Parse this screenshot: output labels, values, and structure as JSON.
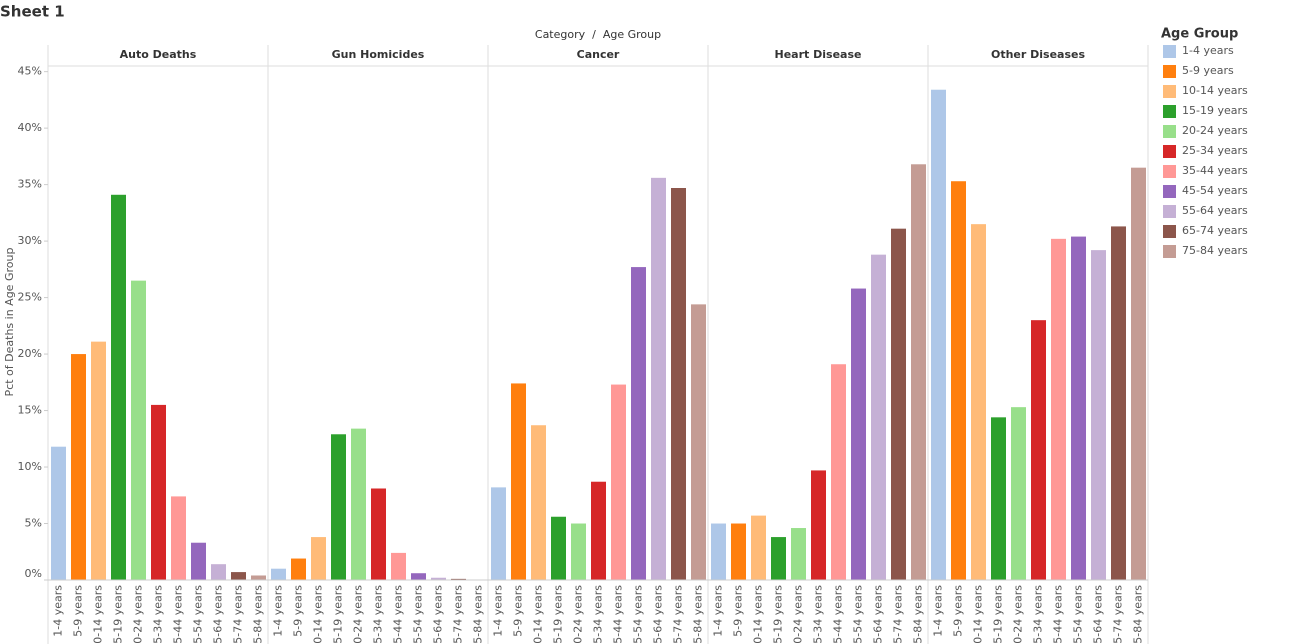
{
  "chart_data": {
    "type": "bar",
    "title": "Sheet 1",
    "column_header": "Category  /  Age Group",
    "y_label": "Pct of Deaths in Age Group",
    "legend_title": "Age Group",
    "legend_position": "right",
    "grid": false,
    "categories": [
      "1-4 years",
      "5-9 years",
      "10-14 years",
      "15-19 years",
      "20-24 years",
      "25-34 years",
      "35-44 years",
      "45-54 years",
      "55-64 years",
      "65-74 years",
      "75-84 years"
    ],
    "colors": [
      "#aec7e8",
      "#ff7f0e",
      "#ffbb78",
      "#2ca02c",
      "#98df8a",
      "#d62728",
      "#ff9896",
      "#9467bd",
      "#c5b0d5",
      "#8c564b",
      "#c49c94"
    ],
    "facets": [
      {
        "name": "Auto Deaths",
        "values": [
          11.8,
          20.0,
          21.1,
          34.1,
          26.5,
          15.5,
          7.4,
          3.3,
          1.4,
          0.7,
          0.4
        ]
      },
      {
        "name": "Gun Homicides",
        "values": [
          1.0,
          1.9,
          3.8,
          12.9,
          13.4,
          8.1,
          2.4,
          0.6,
          0.2,
          0.1,
          0
        ]
      },
      {
        "name": "Cancer",
        "values": [
          8.2,
          17.4,
          13.7,
          5.6,
          5.0,
          8.7,
          17.3,
          27.7,
          35.6,
          34.7,
          24.4
        ]
      },
      {
        "name": "Heart Disease",
        "values": [
          5.0,
          5.0,
          5.7,
          3.8,
          4.6,
          9.7,
          19.1,
          25.8,
          28.8,
          31.1,
          36.8
        ]
      },
      {
        "name": "Other Diseases",
        "values": [
          43.4,
          35.3,
          31.5,
          14.4,
          15.3,
          23.0,
          30.2,
          30.4,
          29.2,
          31.3,
          36.5
        ]
      }
    ],
    "ylim": [
      0,
      45.5
    ],
    "yticks": [
      {
        "value": 0,
        "label": "0%"
      },
      {
        "value": 5,
        "label": "5%"
      },
      {
        "value": 10,
        "label": "10%"
      },
      {
        "value": 15,
        "label": "15%"
      },
      {
        "value": 20,
        "label": "20%"
      },
      {
        "value": 25,
        "label": "25%"
      },
      {
        "value": 30,
        "label": "30%"
      },
      {
        "value": 35,
        "label": "35%"
      },
      {
        "value": 40,
        "label": "40%"
      },
      {
        "value": 45,
        "label": "45%"
      }
    ]
  }
}
